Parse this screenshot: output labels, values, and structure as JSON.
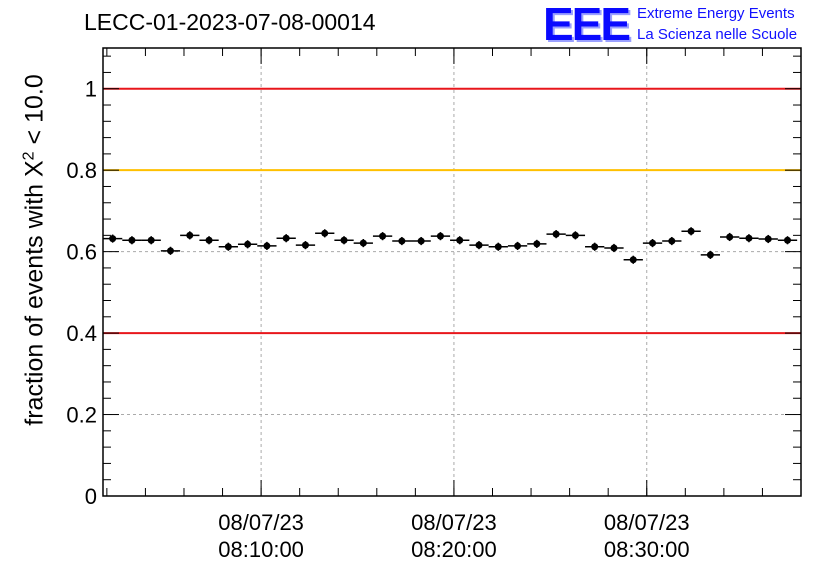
{
  "title": "LECC-01-2023-07-08-00014",
  "logo": {
    "mark": "EEE",
    "line1": "Extreme Energy Events",
    "line2": "La Scienza nelle Scuole"
  },
  "chart_data": {
    "type": "scatter",
    "title": "LECC-01-2023-07-08-00014",
    "ylabel_prefix": "fraction of events with X",
    "ylabel_superscript": "2",
    "ylabel_suffix": " < 10.0",
    "xlabel": "",
    "y_range": [
      0,
      1.1
    ],
    "y_ticks": [
      {
        "value": 0,
        "label": "0"
      },
      {
        "value": 0.2,
        "label": "0.2"
      },
      {
        "value": 0.4,
        "label": "0.4"
      },
      {
        "value": 0.6,
        "label": "0.6"
      },
      {
        "value": 0.8,
        "label": "0.8"
      },
      {
        "value": 1,
        "label": "1"
      }
    ],
    "x_range_minutes": [
      0,
      36.2
    ],
    "x_ticks": [
      {
        "minute": 8.2,
        "date": "08/07/23",
        "time": "08:10:00"
      },
      {
        "minute": 18.2,
        "date": "08/07/23",
        "time": "08:20:00"
      },
      {
        "minute": 28.2,
        "date": "08/07/23",
        "time": "08:30:00"
      }
    ],
    "reference_lines": [
      {
        "y": 1.0,
        "color": "#e8161b"
      },
      {
        "y": 0.8,
        "color": "#ffc000"
      },
      {
        "y": 0.4,
        "color": "#e8161b"
      }
    ],
    "grid": true,
    "bin_width_minutes": 1,
    "points": [
      {
        "x": 0.5,
        "y": 0.632
      },
      {
        "x": 1.5,
        "y": 0.628
      },
      {
        "x": 2.5,
        "y": 0.628
      },
      {
        "x": 3.5,
        "y": 0.602
      },
      {
        "x": 4.5,
        "y": 0.64
      },
      {
        "x": 5.5,
        "y": 0.628
      },
      {
        "x": 6.5,
        "y": 0.612
      },
      {
        "x": 7.5,
        "y": 0.618
      },
      {
        "x": 8.5,
        "y": 0.614
      },
      {
        "x": 9.5,
        "y": 0.633
      },
      {
        "x": 10.5,
        "y": 0.616
      },
      {
        "x": 11.5,
        "y": 0.645
      },
      {
        "x": 12.5,
        "y": 0.628
      },
      {
        "x": 13.5,
        "y": 0.621
      },
      {
        "x": 14.5,
        "y": 0.638
      },
      {
        "x": 15.5,
        "y": 0.626
      },
      {
        "x": 16.5,
        "y": 0.626
      },
      {
        "x": 17.5,
        "y": 0.638
      },
      {
        "x": 18.5,
        "y": 0.628
      },
      {
        "x": 19.5,
        "y": 0.616
      },
      {
        "x": 20.5,
        "y": 0.612
      },
      {
        "x": 21.5,
        "y": 0.614
      },
      {
        "x": 22.5,
        "y": 0.619
      },
      {
        "x": 23.5,
        "y": 0.643
      },
      {
        "x": 24.5,
        "y": 0.64
      },
      {
        "x": 25.5,
        "y": 0.612
      },
      {
        "x": 26.5,
        "y": 0.609
      },
      {
        "x": 27.5,
        "y": 0.58
      },
      {
        "x": 28.5,
        "y": 0.621
      },
      {
        "x": 29.5,
        "y": 0.626
      },
      {
        "x": 30.5,
        "y": 0.65
      },
      {
        "x": 31.5,
        "y": 0.592
      },
      {
        "x": 32.5,
        "y": 0.636
      },
      {
        "x": 33.5,
        "y": 0.633
      },
      {
        "x": 34.5,
        "y": 0.631
      },
      {
        "x": 35.5,
        "y": 0.628
      }
    ],
    "error_bar": 0.01
  }
}
